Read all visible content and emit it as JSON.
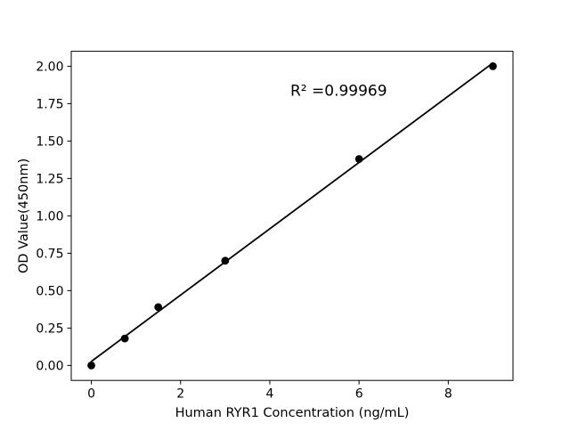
{
  "figure": {
    "background": "#ffffff"
  },
  "chart_data": {
    "type": "scatter",
    "title": "",
    "xlabel": "Human RYR1 Concentration (ng/mL)",
    "ylabel": "OD Value(450nm)",
    "annotation": {
      "text": "R² =0.99969",
      "x": 4.46,
      "y": 1.84
    },
    "x": [
      0,
      0.75,
      1.5,
      3,
      6,
      9
    ],
    "y": [
      0.0,
      0.18,
      0.39,
      0.7,
      1.38,
      2.0
    ],
    "fit_line": {
      "x1": 0,
      "y1": 0.027,
      "x2": 9,
      "y2": 2.022
    },
    "xticks": {
      "values": [
        0,
        2,
        4,
        6,
        8
      ],
      "labels": [
        "0",
        "2",
        "4",
        "6",
        "8"
      ]
    },
    "yticks": {
      "values": [
        0,
        0.25,
        0.5,
        0.75,
        1.0,
        1.25,
        1.5,
        1.75,
        2.0
      ],
      "labels": [
        "0.00",
        "0.25",
        "0.50",
        "0.75",
        "1.00",
        "1.25",
        "1.50",
        "1.75",
        "2.00"
      ]
    },
    "xlim": [
      -0.45,
      9.45
    ],
    "ylim": [
      -0.1,
      2.1
    ],
    "grid": false,
    "legend_position": "none",
    "colors": {
      "marker": "#000000",
      "line": "#000000",
      "spine": "#000000",
      "text": "#000000",
      "background": "#ffffff"
    }
  }
}
